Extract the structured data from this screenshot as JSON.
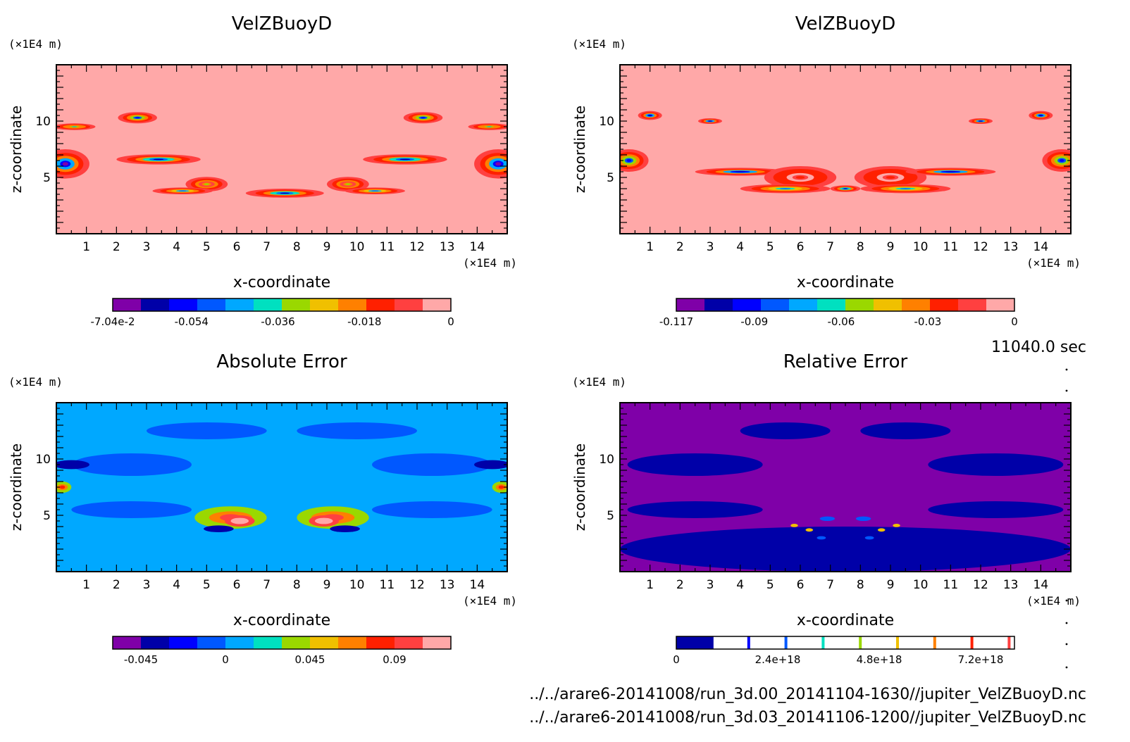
{
  "chart_data": [
    {
      "type": "heatmap",
      "title": "VelZBuoyD",
      "xlabel": "x-coordinate",
      "ylabel": "z-coordinate",
      "x_unit": "(×1E4 m)",
      "y_unit": "(×1E4 m)",
      "xlim": [
        0,
        15
      ],
      "ylim": [
        0,
        15
      ],
      "x_ticks": [
        1,
        2,
        3,
        4,
        5,
        6,
        7,
        8,
        9,
        10,
        11,
        12,
        13,
        14
      ],
      "y_ticks": [
        5,
        10
      ],
      "colorbar": {
        "min": -0.0704,
        "max": 0,
        "tick_values": [
          -0.0704,
          -0.054,
          -0.036,
          -0.018,
          0
        ],
        "tick_labels": [
          "-7.04e-2",
          "-0.054",
          "-0.036",
          "-0.018",
          "0"
        ],
        "colors": [
          "#7f00a8",
          "#0000a8",
          "#0000ff",
          "#0058ff",
          "#00a8ff",
          "#00e0c0",
          "#9ad800",
          "#f0c000",
          "#ff8000",
          "#ff2000",
          "#ff4040",
          "#ffa8a8"
        ]
      },
      "background_level": 0,
      "features": [
        {
          "x": 0.3,
          "z": 6.2,
          "w": 1.6,
          "h": 2.6,
          "level": 0.0
        },
        {
          "x": 0.6,
          "z": 9.5,
          "w": 1.4,
          "h": 0.6,
          "level": 0.35
        },
        {
          "x": 2.7,
          "z": 10.3,
          "w": 1.3,
          "h": 1.0,
          "level": 0.15
        },
        {
          "x": 3.4,
          "z": 6.6,
          "w": 2.8,
          "h": 0.9,
          "level": 0.1
        },
        {
          "x": 5.0,
          "z": 4.4,
          "w": 1.4,
          "h": 1.3,
          "level": 0.55
        },
        {
          "x": 4.2,
          "z": 3.8,
          "w": 2.0,
          "h": 0.6,
          "level": 0.25
        },
        {
          "x": 7.6,
          "z": 3.6,
          "w": 2.6,
          "h": 0.8,
          "level": 0.1
        },
        {
          "x": 9.7,
          "z": 4.4,
          "w": 1.4,
          "h": 1.3,
          "level": 0.55
        },
        {
          "x": 10.6,
          "z": 3.8,
          "w": 2.0,
          "h": 0.6,
          "level": 0.25
        },
        {
          "x": 12.2,
          "z": 10.3,
          "w": 1.3,
          "h": 1.0,
          "level": 0.15
        },
        {
          "x": 11.6,
          "z": 6.6,
          "w": 2.8,
          "h": 0.9,
          "level": 0.1
        },
        {
          "x": 14.4,
          "z": 9.5,
          "w": 1.4,
          "h": 0.6,
          "level": 0.35
        },
        {
          "x": 14.7,
          "z": 6.2,
          "w": 1.6,
          "h": 2.6,
          "level": 0.0
        }
      ]
    },
    {
      "type": "heatmap",
      "title": "VelZBuoyD",
      "xlabel": "x-coordinate",
      "ylabel": "z-coordinate",
      "x_unit": "(×1E4 m)",
      "y_unit": "(×1E4 m)",
      "xlim": [
        0,
        15
      ],
      "ylim": [
        0,
        15
      ],
      "x_ticks": [
        1,
        2,
        3,
        4,
        5,
        6,
        7,
        8,
        9,
        10,
        11,
        12,
        13,
        14
      ],
      "y_ticks": [
        5,
        10
      ],
      "colorbar": {
        "min": -0.117,
        "max": 0,
        "tick_values": [
          -0.117,
          -0.09,
          -0.06,
          -0.03,
          0
        ],
        "tick_labels": [
          "-0.117",
          "-0.09",
          "-0.06",
          "-0.03",
          "0"
        ],
        "colors": [
          "#7f00a8",
          "#0000a8",
          "#0000ff",
          "#0058ff",
          "#00a8ff",
          "#00e0c0",
          "#9ad800",
          "#f0c000",
          "#ff8000",
          "#ff2000",
          "#ff4040",
          "#ffa8a8"
        ]
      },
      "background_level": 0,
      "features": [
        {
          "x": 0.3,
          "z": 6.5,
          "w": 1.3,
          "h": 2.0,
          "level": 0.15
        },
        {
          "x": 1.0,
          "z": 10.5,
          "w": 0.8,
          "h": 0.8,
          "level": 0.05
        },
        {
          "x": 3.0,
          "z": 10.0,
          "w": 0.8,
          "h": 0.5,
          "level": 0.05
        },
        {
          "x": 4.0,
          "z": 5.5,
          "w": 3.0,
          "h": 0.7,
          "level": 0.05
        },
        {
          "x": 6.0,
          "z": 5.0,
          "w": 2.4,
          "h": 2.0,
          "level": 0.8
        },
        {
          "x": 5.5,
          "z": 4.0,
          "w": 3.0,
          "h": 0.8,
          "level": 0.3
        },
        {
          "x": 9.0,
          "z": 5.0,
          "w": 2.4,
          "h": 2.0,
          "level": 0.8
        },
        {
          "x": 9.5,
          "z": 4.0,
          "w": 3.0,
          "h": 0.8,
          "level": 0.3
        },
        {
          "x": 7.5,
          "z": 4.0,
          "w": 1.0,
          "h": 0.6,
          "level": 0.1
        },
        {
          "x": 12.0,
          "z": 10.0,
          "w": 0.8,
          "h": 0.5,
          "level": 0.05
        },
        {
          "x": 14.0,
          "z": 10.5,
          "w": 0.8,
          "h": 0.8,
          "level": 0.05
        },
        {
          "x": 11.0,
          "z": 5.5,
          "w": 3.0,
          "h": 0.7,
          "level": 0.05
        },
        {
          "x": 14.7,
          "z": 6.5,
          "w": 1.3,
          "h": 2.0,
          "level": 0.15
        }
      ]
    },
    {
      "type": "heatmap",
      "title": "Absolute Error",
      "xlabel": "x-coordinate",
      "ylabel": "z-coordinate",
      "x_unit": "(×1E4 m)",
      "y_unit": "(×1E4 m)",
      "xlim": [
        0,
        15
      ],
      "ylim": [
        0,
        15
      ],
      "x_ticks": [
        1,
        2,
        3,
        4,
        5,
        6,
        7,
        8,
        9,
        10,
        11,
        12,
        13,
        14
      ],
      "y_ticks": [
        5,
        10
      ],
      "colorbar": {
        "min": -0.06,
        "max": 0.12,
        "tick_values": [
          -0.045,
          0,
          0.045,
          0.09
        ],
        "tick_labels": [
          "-0.045",
          "0",
          "0.045",
          "0.09"
        ],
        "colors": [
          "#7f00a8",
          "#0000a8",
          "#0000ff",
          "#0058ff",
          "#00a8ff",
          "#00e0c0",
          "#9ad800",
          "#f0c000",
          "#ff8000",
          "#ff2000",
          "#ff4040",
          "#ffa8a8"
        ]
      },
      "background_level": 0.35,
      "features": [
        {
          "x": 2.5,
          "z": 9.5,
          "w": 4.0,
          "h": 2.0,
          "level": 0.27
        },
        {
          "x": 12.5,
          "z": 9.5,
          "w": 4.0,
          "h": 2.0,
          "level": 0.27
        },
        {
          "x": 5.0,
          "z": 12.5,
          "w": 4.0,
          "h": 1.5,
          "level": 0.27
        },
        {
          "x": 10.0,
          "z": 12.5,
          "w": 4.0,
          "h": 1.5,
          "level": 0.27
        },
        {
          "x": 2.5,
          "z": 5.5,
          "w": 4.0,
          "h": 1.5,
          "level": 0.27
        },
        {
          "x": 12.5,
          "z": 5.5,
          "w": 4.0,
          "h": 1.5,
          "level": 0.27
        },
        {
          "x": 0.5,
          "z": 9.5,
          "w": 1.2,
          "h": 0.8,
          "level": 0.1
        },
        {
          "x": 14.5,
          "z": 9.5,
          "w": 1.2,
          "h": 0.8,
          "level": 0.1
        },
        {
          "x": 5.8,
          "z": 4.8,
          "w": 2.4,
          "h": 2.0,
          "level": 0.55
        },
        {
          "x": 6.1,
          "z": 4.5,
          "w": 1.0,
          "h": 1.0,
          "level": 0.9
        },
        {
          "x": 9.2,
          "z": 4.8,
          "w": 2.4,
          "h": 2.0,
          "level": 0.55
        },
        {
          "x": 8.9,
          "z": 4.5,
          "w": 1.0,
          "h": 1.0,
          "level": 0.9
        },
        {
          "x": 5.4,
          "z": 3.8,
          "w": 1.0,
          "h": 0.6,
          "level": 0.1
        },
        {
          "x": 9.6,
          "z": 3.8,
          "w": 1.0,
          "h": 0.6,
          "level": 0.1
        },
        {
          "x": 0.2,
          "z": 7.5,
          "w": 0.6,
          "h": 1.0,
          "level": 0.5
        },
        {
          "x": 14.8,
          "z": 7.5,
          "w": 0.6,
          "h": 1.0,
          "level": 0.5
        }
      ]
    },
    {
      "type": "heatmap",
      "title": "Relative Error",
      "xlabel": "x-coordinate",
      "ylabel": "z-coordinate",
      "x_unit": "(×1E4 m)",
      "y_unit": "(×1E4 m)",
      "xlim": [
        0,
        15
      ],
      "ylim": [
        0,
        15
      ],
      "x_ticks": [
        1,
        2,
        3,
        4,
        5,
        6,
        7,
        8,
        9,
        10,
        11,
        12,
        13,
        14
      ],
      "y_ticks": [
        5,
        10
      ],
      "colorbar": {
        "min": 0,
        "max": 8e+18,
        "tick_values": [
          0,
          2.4e+18,
          4.8e+18,
          7.2e+18
        ],
        "tick_labels": [
          "0",
          "2.4e+18",
          "4.8e+18",
          "7.2e+18"
        ],
        "colors": [
          "#0000a8",
          "#0000ff",
          "#0058ff",
          "#00e0c0",
          "#9ad800",
          "#f0c000",
          "#ff8000",
          "#ff2000",
          "#ff4040"
        ]
      },
      "background_level": -1,
      "features": [
        {
          "x": 7.5,
          "z": 2.0,
          "w": 15.0,
          "h": 4.0,
          "level": 0.0
        },
        {
          "x": 2.5,
          "z": 9.5,
          "w": 4.5,
          "h": 2.0,
          "level": 0.0
        },
        {
          "x": 12.5,
          "z": 9.5,
          "w": 4.5,
          "h": 2.0,
          "level": 0.0
        },
        {
          "x": 5.5,
          "z": 12.5,
          "w": 3.0,
          "h": 1.5,
          "level": 0.0
        },
        {
          "x": 9.5,
          "z": 12.5,
          "w": 3.0,
          "h": 1.5,
          "level": 0.0
        },
        {
          "x": 2.5,
          "z": 5.5,
          "w": 4.5,
          "h": 1.5,
          "level": 0.0
        },
        {
          "x": 12.5,
          "z": 5.5,
          "w": 4.5,
          "h": 1.5,
          "level": 0.0
        },
        {
          "x": 6.9,
          "z": 4.7,
          "w": 0.5,
          "h": 0.4,
          "level": 0.3
        },
        {
          "x": 8.1,
          "z": 4.7,
          "w": 0.5,
          "h": 0.4,
          "level": 0.3
        },
        {
          "x": 5.8,
          "z": 4.1,
          "w": 0.25,
          "h": 0.3,
          "level": 0.6
        },
        {
          "x": 6.3,
          "z": 3.7,
          "w": 0.25,
          "h": 0.3,
          "level": 0.6
        },
        {
          "x": 6.7,
          "z": 3.0,
          "w": 0.3,
          "h": 0.3,
          "level": 0.3
        },
        {
          "x": 8.7,
          "z": 3.7,
          "w": 0.25,
          "h": 0.3,
          "level": 0.6
        },
        {
          "x": 9.2,
          "z": 4.1,
          "w": 0.25,
          "h": 0.3,
          "level": 0.6
        },
        {
          "x": 8.3,
          "z": 3.0,
          "w": 0.3,
          "h": 0.3,
          "level": 0.3
        }
      ]
    }
  ],
  "footer": {
    "time": "11040.0 sec",
    "file1": "../../arare6-20141008/run_3d.00_20141104-1630//jupiter_VelZBuoyD.nc",
    "file2": "../../arare6-20141008/run_3d.03_20141106-1200//jupiter_VelZBuoyD.nc"
  }
}
